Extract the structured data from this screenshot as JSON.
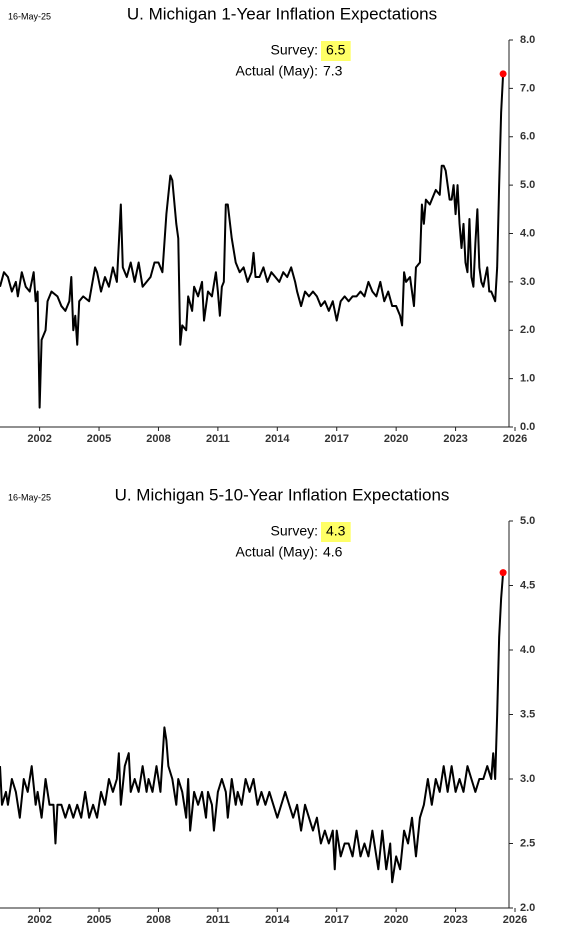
{
  "chart_data": [
    {
      "type": "line",
      "date_label": "16-May-25",
      "title": "U. Michigan 1-Year Inflation Expectations",
      "survey_label": "Survey:",
      "survey_value": 6.5,
      "survey_highlight": "#ffff66",
      "actual_label": "Actual (May):",
      "actual_value": 7.3,
      "xlim": [
        2000,
        2026
      ],
      "xticks": [
        2002,
        2005,
        2008,
        2011,
        2014,
        2017,
        2020,
        2023,
        2026
      ],
      "ylim": [
        0,
        8
      ],
      "yticks": [
        {
          "value": 0,
          "label": "0.0"
        },
        {
          "value": 1,
          "label": "1.0"
        },
        {
          "value": 2,
          "label": "2.0"
        },
        {
          "value": 3,
          "label": "3.0"
        },
        {
          "value": 4,
          "label": "4.0"
        },
        {
          "value": 5,
          "label": "5.0"
        },
        {
          "value": 6,
          "label": "6.0"
        },
        {
          "value": 7,
          "label": "7.0"
        },
        {
          "value": 8,
          "label": "8.0"
        }
      ],
      "last_point_color": "#ff0000",
      "x": [
        2000.0,
        2000.2,
        2000.4,
        2000.6,
        2000.8,
        2000.9,
        2001.1,
        2001.3,
        2001.5,
        2001.7,
        2001.8,
        2001.9,
        2002.0,
        2002.1,
        2002.3,
        2002.4,
        2002.6,
        2002.9,
        2003.1,
        2003.3,
        2003.5,
        2003.6,
        2003.7,
        2003.8,
        2003.9,
        2004.0,
        2004.2,
        2004.5,
        2004.8,
        2004.9,
        2005.1,
        2005.3,
        2005.5,
        2005.7,
        2005.9,
        2006.1,
        2006.2,
        2006.4,
        2006.6,
        2006.8,
        2007.0,
        2007.2,
        2007.4,
        2007.6,
        2007.8,
        2008.0,
        2008.2,
        2008.4,
        2008.6,
        2008.7,
        2008.9,
        2009.0,
        2009.1,
        2009.2,
        2009.4,
        2009.5,
        2009.7,
        2009.8,
        2010.0,
        2010.2,
        2010.3,
        2010.5,
        2010.7,
        2010.9,
        2011.0,
        2011.1,
        2011.2,
        2011.3,
        2011.4,
        2011.5,
        2011.7,
        2011.9,
        2012.1,
        2012.3,
        2012.5,
        2012.7,
        2012.8,
        2012.9,
        2013.1,
        2013.3,
        2013.5,
        2013.7,
        2013.9,
        2014.1,
        2014.3,
        2014.5,
        2014.7,
        2014.9,
        2015.0,
        2015.2,
        2015.4,
        2015.6,
        2015.8,
        2016.0,
        2016.2,
        2016.4,
        2016.6,
        2016.8,
        2017.0,
        2017.2,
        2017.4,
        2017.6,
        2017.8,
        2018.0,
        2018.2,
        2018.4,
        2018.6,
        2018.8,
        2019.0,
        2019.2,
        2019.4,
        2019.6,
        2019.8,
        2020.0,
        2020.2,
        2020.3,
        2020.4,
        2020.5,
        2020.7,
        2020.9,
        2021.0,
        2021.2,
        2021.3,
        2021.4,
        2021.5,
        2021.7,
        2021.9,
        2022.0,
        2022.2,
        2022.3,
        2022.4,
        2022.5,
        2022.7,
        2022.8,
        2022.9,
        2023.0,
        2023.1,
        2023.2,
        2023.3,
        2023.4,
        2023.5,
        2023.6,
        2023.7,
        2023.8,
        2023.9,
        2024.0,
        2024.1,
        2024.2,
        2024.3,
        2024.4,
        2024.6,
        2024.7,
        2024.8,
        2024.9,
        2025.0,
        2025.1,
        2025.2,
        2025.3,
        2025.4
      ],
      "series": [
        {
          "color": "#000000",
          "values": [
            2.9,
            3.2,
            3.1,
            2.8,
            3.0,
            2.7,
            3.2,
            2.9,
            2.8,
            3.2,
            2.6,
            2.8,
            0.4,
            1.8,
            2.0,
            2.6,
            2.8,
            2.7,
            2.5,
            2.4,
            2.6,
            3.1,
            2.0,
            2.3,
            1.7,
            2.6,
            2.7,
            2.6,
            3.3,
            3.2,
            2.8,
            3.1,
            2.9,
            3.3,
            3.0,
            4.6,
            3.3,
            3.1,
            3.4,
            3.0,
            3.4,
            2.9,
            3.0,
            3.1,
            3.4,
            3.4,
            3.2,
            4.4,
            5.2,
            5.1,
            4.2,
            3.9,
            1.7,
            2.1,
            2.0,
            2.7,
            2.4,
            2.9,
            2.7,
            3.0,
            2.2,
            2.8,
            2.7,
            3.2,
            2.8,
            2.3,
            2.9,
            3.0,
            4.6,
            4.6,
            3.9,
            3.4,
            3.2,
            3.3,
            3.0,
            3.2,
            3.6,
            3.1,
            3.1,
            3.3,
            3.0,
            3.2,
            3.1,
            3.0,
            3.2,
            3.1,
            3.3,
            3.0,
            2.8,
            2.5,
            2.8,
            2.7,
            2.8,
            2.7,
            2.5,
            2.6,
            2.4,
            2.6,
            2.2,
            2.6,
            2.7,
            2.6,
            2.7,
            2.7,
            2.8,
            2.7,
            3.0,
            2.8,
            2.7,
            3.0,
            2.6,
            2.8,
            2.5,
            2.5,
            2.3,
            2.1,
            3.2,
            3.0,
            3.1,
            2.5,
            3.3,
            3.4,
            4.6,
            4.2,
            4.7,
            4.6,
            4.8,
            4.9,
            4.8,
            5.4,
            5.4,
            5.3,
            4.7,
            4.7,
            5.0,
            4.4,
            5.0,
            4.2,
            3.7,
            4.2,
            3.4,
            3.2,
            4.3,
            3.1,
            2.9,
            3.8,
            4.5,
            3.3,
            3.0,
            2.9,
            3.3,
            2.8,
            2.8,
            2.7,
            2.6,
            3.3,
            5.0,
            6.5,
            7.3
          ]
        }
      ]
    },
    {
      "type": "line",
      "date_label": "16-May-25",
      "title": "U. Michigan 5-10-Year Inflation Expectations",
      "survey_label": "Survey:",
      "survey_value": 4.3,
      "survey_highlight": "#ffff66",
      "actual_label": "Actual (May):",
      "actual_value": 4.6,
      "xlim": [
        2000,
        2026
      ],
      "xticks": [
        2002,
        2005,
        2008,
        2011,
        2014,
        2017,
        2020,
        2023,
        2026
      ],
      "ylim": [
        2,
        5
      ],
      "yticks": [
        {
          "value": 2,
          "label": "2.0"
        },
        2.5,
        {
          "value": 3,
          "label": "3.0"
        },
        3.5,
        {
          "value": 4,
          "label": "4.0"
        },
        4.5,
        {
          "value": 5,
          "label": "5.0"
        }
      ],
      "last_point_color": "#ff0000",
      "x": [
        2000.0,
        2000.1,
        2000.3,
        2000.4,
        2000.6,
        2000.8,
        2001.0,
        2001.2,
        2001.4,
        2001.6,
        2001.8,
        2001.9,
        2002.1,
        2002.3,
        2002.5,
        2002.7,
        2002.8,
        2002.9,
        2003.1,
        2003.3,
        2003.5,
        2003.7,
        2003.9,
        2004.1,
        2004.3,
        2004.5,
        2004.7,
        2004.9,
        2005.1,
        2005.3,
        2005.5,
        2005.7,
        2005.9,
        2006.0,
        2006.1,
        2006.3,
        2006.5,
        2006.6,
        2006.8,
        2007.0,
        2007.2,
        2007.4,
        2007.5,
        2007.7,
        2007.9,
        2008.1,
        2008.3,
        2008.4,
        2008.5,
        2008.7,
        2008.9,
        2009.0,
        2009.2,
        2009.4,
        2009.5,
        2009.6,
        2009.8,
        2010.0,
        2010.2,
        2010.4,
        2010.5,
        2010.7,
        2010.8,
        2011.0,
        2011.2,
        2011.4,
        2011.5,
        2011.7,
        2011.9,
        2012.0,
        2012.2,
        2012.4,
        2012.6,
        2012.8,
        2013.0,
        2013.2,
        2013.4,
        2013.6,
        2013.8,
        2014.0,
        2014.2,
        2014.4,
        2014.6,
        2014.8,
        2015.0,
        2015.2,
        2015.4,
        2015.6,
        2015.8,
        2016.0,
        2016.2,
        2016.4,
        2016.6,
        2016.8,
        2016.9,
        2017.0,
        2017.2,
        2017.4,
        2017.6,
        2017.8,
        2018.0,
        2018.2,
        2018.4,
        2018.6,
        2018.8,
        2019.0,
        2019.1,
        2019.3,
        2019.5,
        2019.7,
        2019.8,
        2020.0,
        2020.2,
        2020.4,
        2020.6,
        2020.8,
        2021.0,
        2021.2,
        2021.4,
        2021.6,
        2021.8,
        2022.0,
        2022.2,
        2022.4,
        2022.6,
        2022.8,
        2023.0,
        2023.2,
        2023.4,
        2023.6,
        2023.8,
        2024.0,
        2024.2,
        2024.4,
        2024.6,
        2024.8,
        2024.9,
        2025.0,
        2025.1,
        2025.2,
        2025.3,
        2025.4
      ],
      "series": [
        {
          "color": "#000000",
          "values": [
            3.1,
            2.8,
            2.9,
            2.8,
            3.0,
            2.9,
            2.7,
            3.0,
            2.9,
            3.1,
            2.8,
            2.9,
            2.7,
            3.0,
            2.8,
            2.8,
            2.5,
            2.8,
            2.8,
            2.7,
            2.8,
            2.7,
            2.8,
            2.7,
            2.9,
            2.7,
            2.8,
            2.7,
            2.9,
            2.8,
            3.0,
            2.9,
            3.0,
            3.2,
            2.8,
            3.1,
            3.2,
            2.9,
            3.0,
            2.9,
            3.1,
            2.9,
            3.0,
            2.9,
            3.1,
            2.9,
            3.4,
            3.3,
            3.1,
            3.0,
            2.8,
            3.0,
            2.9,
            2.7,
            3.0,
            2.6,
            2.9,
            2.8,
            2.9,
            2.7,
            2.9,
            2.8,
            2.6,
            2.9,
            3.0,
            2.9,
            2.7,
            3.0,
            2.8,
            2.9,
            2.8,
            3.0,
            2.9,
            3.0,
            2.8,
            2.9,
            2.8,
            2.9,
            2.8,
            2.7,
            2.8,
            2.9,
            2.8,
            2.7,
            2.8,
            2.6,
            2.8,
            2.7,
            2.6,
            2.7,
            2.5,
            2.6,
            2.5,
            2.6,
            2.3,
            2.6,
            2.4,
            2.5,
            2.5,
            2.4,
            2.6,
            2.4,
            2.5,
            2.4,
            2.6,
            2.4,
            2.3,
            2.6,
            2.3,
            2.5,
            2.2,
            2.4,
            2.3,
            2.6,
            2.5,
            2.7,
            2.4,
            2.7,
            2.8,
            3.0,
            2.8,
            3.0,
            2.9,
            3.1,
            2.9,
            3.1,
            2.9,
            3.0,
            2.9,
            3.1,
            3.0,
            2.9,
            3.0,
            3.0,
            3.1,
            3.0,
            3.2,
            3.0,
            3.5,
            4.1,
            4.4,
            4.6
          ]
        }
      ]
    }
  ]
}
